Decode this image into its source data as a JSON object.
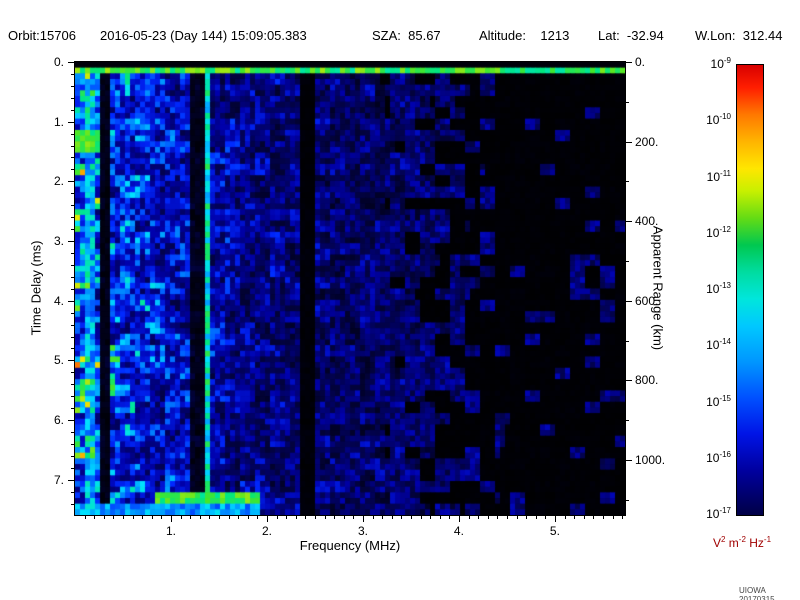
{
  "header": {
    "orbit": "Orbit:15706",
    "datetime": "2016-05-23 (Day 144) 15:09:05.383",
    "sza": "SZA:  85.67",
    "altitude": "Altitude:    1213",
    "lat": "Lat:  -32.94",
    "wlon": "W.Lon:  312.44"
  },
  "footer": {
    "credit": "UIOWA 20170315"
  },
  "chart_data": {
    "type": "heatmap",
    "xlabel": "Frequency (MHz)",
    "ylabel_left": "Time Delay (ms)",
    "ylabel_right": "Apparent Range (km)",
    "x_range_mhz": [
      0.0,
      5.73
    ],
    "y_range_ms": [
      0.0,
      7.59
    ],
    "km_per_ms": 150,
    "x_ticks": [
      {
        "v": 1,
        "label": "1."
      },
      {
        "v": 2,
        "label": "2."
      },
      {
        "v": 3,
        "label": "3."
      },
      {
        "v": 4,
        "label": "4."
      },
      {
        "v": 5,
        "label": "5."
      }
    ],
    "x_minor_step": 0.1,
    "y_ticks": [
      {
        "v": 0,
        "label": "0."
      },
      {
        "v": 1,
        "label": "1."
      },
      {
        "v": 2,
        "label": "2."
      },
      {
        "v": 3,
        "label": "3."
      },
      {
        "v": 4,
        "label": "4."
      },
      {
        "v": 5,
        "label": "5."
      },
      {
        "v": 6,
        "label": "6."
      },
      {
        "v": 7,
        "label": "7."
      }
    ],
    "y_minor_step": 0.2,
    "right_ticks_km": [
      {
        "v": 0,
        "label": "0."
      },
      {
        "v": 200,
        "label": "200."
      },
      {
        "v": 400,
        "label": "400."
      },
      {
        "v": 600,
        "label": "600."
      },
      {
        "v": 800,
        "label": "800."
      },
      {
        "v": 1000,
        "label": "1000."
      }
    ],
    "right_minor_step_km": 100,
    "colorbar": {
      "base": "10",
      "tick_exponents": [
        "-9",
        "-10",
        "-11",
        "-12",
        "-13",
        "-14",
        "-15",
        "-16",
        "-17"
      ],
      "scale_min": "1e-17",
      "scale_max": "1e-9",
      "unit_parts": [
        [
          "V",
          "2"
        ],
        [
          " m",
          "-2"
        ],
        [
          " Hz",
          "-1"
        ]
      ],
      "units_color": "#a00000",
      "gradient": [
        [
          "0%",
          "#d80000"
        ],
        [
          "5%",
          "#ff1e00"
        ],
        [
          "11%",
          "#ff7800"
        ],
        [
          "17%",
          "#ffb400"
        ],
        [
          "23%",
          "#ffe600"
        ],
        [
          "28%",
          "#c8f000"
        ],
        [
          "34%",
          "#64dc14"
        ],
        [
          "40%",
          "#00c850"
        ],
        [
          "46%",
          "#00dca0"
        ],
        [
          "52%",
          "#00e6dc"
        ],
        [
          "58%",
          "#00c8ff"
        ],
        [
          "66%",
          "#0096ff"
        ],
        [
          "74%",
          "#0050ff"
        ],
        [
          "82%",
          "#0014e6"
        ],
        [
          "90%",
          "#0000a0"
        ],
        [
          "100%",
          "#000046"
        ]
      ]
    },
    "colormap_stops": [
      [
        0,
        [
          0,
          0,
          0
        ]
      ],
      [
        0.06,
        [
          2,
          2,
          60
        ]
      ],
      [
        0.18,
        [
          0,
          0,
          170
        ]
      ],
      [
        0.3,
        [
          0,
          40,
          255
        ]
      ],
      [
        0.42,
        [
          0,
          140,
          255
        ]
      ],
      [
        0.52,
        [
          0,
          225,
          255
        ]
      ],
      [
        0.62,
        [
          0,
          230,
          130
        ]
      ],
      [
        0.7,
        [
          70,
          230,
          40
        ]
      ],
      [
        0.8,
        [
          235,
          235,
          0
        ]
      ],
      [
        0.9,
        [
          255,
          140,
          0
        ]
      ],
      [
        1,
        [
          255,
          20,
          0
        ]
      ]
    ],
    "noise_seed": 20170315,
    "grid": {
      "cols": 110,
      "rows": 80
    },
    "noise": {
      "base_offset": 0.13,
      "base_amp": 0.5,
      "base_falloff": 1.1,
      "mix_fine": 0.55,
      "mix_coarse": 0.45,
      "gain_offset": 0.2,
      "gain_amp": 1.35,
      "gain_pow": 1.7,
      "sparse_start_mhz": 3.2,
      "sparse_rate": 1.5,
      "sparse_max": 0.88,
      "sparse_dim": 0.06
    },
    "features": [
      {
        "name": "rfi-dark-band-0.3MHz",
        "mode": "mul",
        "f": [
          0.27,
          0.35
        ],
        "t": [
          0,
          7.59
        ],
        "level": 0.07
      },
      {
        "name": "rfi-dark-band-1.28MHz",
        "mode": "mul",
        "f": [
          1.22,
          1.34
        ],
        "t": [
          0,
          7.59
        ],
        "level": 0.15
      },
      {
        "name": "rfi-dark-band-2.4MHz",
        "mode": "mul",
        "f": [
          2.36,
          2.5
        ],
        "t": [
          0,
          7.59
        ],
        "level": 0.06
      },
      {
        "name": "harmonic-column-0.16MHz",
        "mode": "max",
        "f": [
          0.13,
          0.19
        ],
        "t": [
          0,
          7.59
        ],
        "level": 0.33,
        "jitter": 0.25
      },
      {
        "name": "plasma-oscillation-line-1.38MHz",
        "mode": "max",
        "f": [
          1.34,
          1.43
        ],
        "t": [
          0,
          7.59
        ],
        "level": 0.42,
        "jitter": 0.25
      },
      {
        "name": "low-frequency-echo-blob",
        "mode": "set",
        "f": [
          0.02,
          0.24
        ],
        "t": [
          1.18,
          1.48
        ],
        "level": 0.6,
        "jitter": 0.15
      },
      {
        "name": "ionospheric-echo-trace",
        "mode": "set",
        "f": [
          0.85,
          1.95
        ],
        "t": [
          7.17,
          7.4
        ],
        "level": 0.6,
        "jitter": 0.15
      },
      {
        "name": "bottom-edge-clutter",
        "mode": "max",
        "f": [
          0.0,
          1.95
        ],
        "t": [
          7.44,
          7.59
        ],
        "level": 0.33,
        "jitter": 0.2
      },
      {
        "name": "top-receiver-gap",
        "mode": "set",
        "f": [
          0,
          5.73
        ],
        "t": [
          0,
          0.075
        ],
        "level": 0.01,
        "jitter": 0
      },
      {
        "name": "transmit-pulse-line",
        "mode": "set",
        "f": [
          0,
          5.73
        ],
        "t": [
          0.075,
          0.21
        ],
        "level": 0.58,
        "jitter": 0.18
      }
    ]
  }
}
